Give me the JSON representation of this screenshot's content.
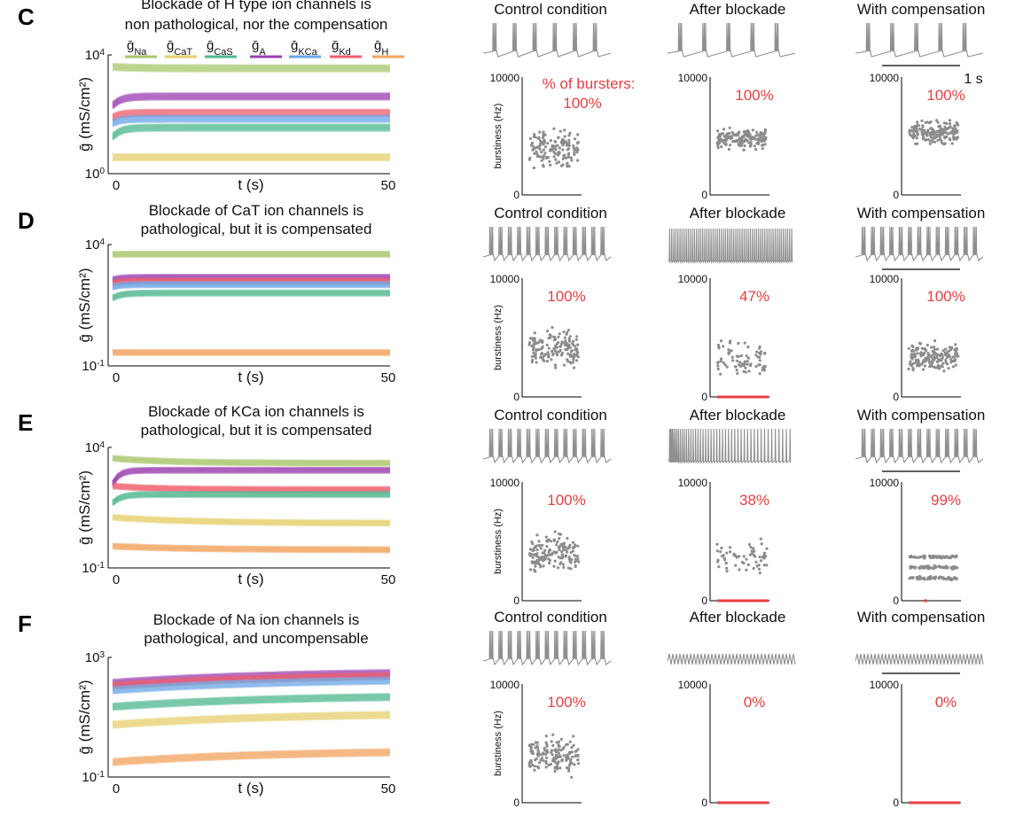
{
  "colors": {
    "Na": "#a8c66c",
    "CaT": "#e6cf6e",
    "CaS": "#4fb88e",
    "A": "#9a3fb1",
    "KCa": "#6aa6e6",
    "Kd": "#ef5d6b",
    "H": "#f3a25d",
    "scatter": "#8c8c8c",
    "red": "#e8403f",
    "trace": "#8f8f8f"
  },
  "legend": {
    "items": [
      {
        "key": "Na",
        "sub": "Na"
      },
      {
        "key": "CaT",
        "sub": "CaT"
      },
      {
        "key": "CaS",
        "sub": "CaS"
      },
      {
        "key": "A",
        "sub": "A"
      },
      {
        "key": "KCa",
        "sub": "KCa"
      },
      {
        "key": "Kd",
        "sub": "Kd"
      },
      {
        "key": "H",
        "sub": "H"
      }
    ]
  },
  "scale_bar": {
    "label": "1 s"
  },
  "chart_data": [
    {
      "panel": "C",
      "type": "line",
      "title": [
        "Blockade of H type ion channels is",
        "non pathological, nor the compensation"
      ],
      "xlabel": "t (s)",
      "ylabel": "ḡ (mS/cm²)",
      "xlim": [
        0,
        50
      ],
      "yscale": "log",
      "yticks": [
        {
          "base": "10",
          "exp": "4"
        },
        {
          "base": "10",
          "exp": "0"
        }
      ],
      "ylim_exp": [
        0,
        4
      ],
      "series": [
        {
          "key": "Na",
          "start": 3.6,
          "end": 3.55,
          "tau": 4
        },
        {
          "key": "A",
          "start": 2.3,
          "end": 2.6,
          "tau": 1.5
        },
        {
          "key": "Kd",
          "start": 1.9,
          "end": 2.05,
          "tau": 1.5
        },
        {
          "key": "KCa",
          "start": 1.7,
          "end": 1.85,
          "tau": 1.5
        },
        {
          "key": "CaS",
          "start": 1.25,
          "end": 1.55,
          "tau": 1.5
        },
        {
          "key": "CaT",
          "start": 0.55,
          "end": 0.55,
          "tau": 4
        }
      ],
      "conditions": [
        {
          "name": "Control condition",
          "trace": "burst6",
          "pct": "% of bursters:",
          "pct2": "100%",
          "burstiness": {
            "center": 3900,
            "spread": 1300,
            "n": 150,
            "zeros": false
          }
        },
        {
          "name": "After blockade",
          "trace": "burst5",
          "pct": "100%",
          "burstiness": {
            "center": 4800,
            "spread": 700,
            "n": 170,
            "zeros": false
          }
        },
        {
          "name": "With compensation",
          "trace": "burst5",
          "pct": "100%",
          "burstiness": {
            "center": 5300,
            "spread": 800,
            "n": 170,
            "zeros": false
          },
          "scale_bar": true
        }
      ],
      "burst_ylim": [
        0,
        10000
      ],
      "burst_ylabel": "burstiness (Hz)"
    },
    {
      "panel": "D",
      "type": "line",
      "title": [
        "Blockade of CaT ion channels is",
        "pathological, but it is compensated"
      ],
      "xlabel": "t (s)",
      "ylabel": "ḡ (mS/cm²)",
      "xlim": [
        0,
        50
      ],
      "yscale": "log",
      "yticks": [
        {
          "base": "10",
          "exp": "4"
        },
        {
          "base": "10",
          "exp": "-1"
        }
      ],
      "ylim_exp": [
        -1,
        4
      ],
      "series": [
        {
          "key": "Na",
          "start": 3.6,
          "end": 3.6,
          "tau": 4
        },
        {
          "key": "A",
          "start": 2.55,
          "end": 2.65,
          "tau": 1.5
        },
        {
          "key": "Kd",
          "start": 2.4,
          "end": 2.5,
          "tau": 1.5
        },
        {
          "key": "KCa",
          "start": 2.25,
          "end": 2.35,
          "tau": 1.5
        },
        {
          "key": "CaS",
          "start": 1.8,
          "end": 2.0,
          "tau": 1.5
        },
        {
          "key": "H",
          "start": -0.45,
          "end": -0.45,
          "tau": 4
        }
      ],
      "conditions": [
        {
          "name": "Control condition",
          "trace": "burst13",
          "pct": "100%",
          "burstiness": {
            "center": 4000,
            "spread": 1300,
            "n": 150,
            "zeros": false
          }
        },
        {
          "name": "After blockade",
          "trace": "spike60",
          "pct": "47%",
          "burstiness": {
            "center": 3000,
            "spread": 1400,
            "n": 75,
            "zeros": true
          }
        },
        {
          "name": "With compensation",
          "trace": "burst13",
          "pct": "100%",
          "burstiness": {
            "center": 3300,
            "spread": 1000,
            "n": 170,
            "zeros": false
          },
          "scale_bar": true
        }
      ],
      "burst_ylim": [
        0,
        10000
      ],
      "burst_ylabel": "burstiness (Hz)"
    },
    {
      "panel": "E",
      "type": "line",
      "title": [
        "Blockade of KCa ion channels is",
        "pathological, but it is compensated"
      ],
      "xlabel": "t (s)",
      "ylabel": "ḡ (mS/cm²)",
      "xlim": [
        0,
        50
      ],
      "yscale": "log",
      "yticks": [
        {
          "base": "10",
          "exp": "4"
        },
        {
          "base": "10",
          "exp": "-1"
        }
      ],
      "ylim_exp": [
        -1,
        4
      ],
      "series": [
        {
          "key": "Na",
          "start": 3.55,
          "end": 3.35,
          "tau": 10
        },
        {
          "key": "A",
          "start": 2.5,
          "end": 3.05,
          "tau": 1.2
        },
        {
          "key": "Kd",
          "start": 2.4,
          "end": 2.25,
          "tau": 8
        },
        {
          "key": "CaS",
          "start": 1.7,
          "end": 2.05,
          "tau": 1.5
        },
        {
          "key": "CaT",
          "start": 1.1,
          "end": 0.85,
          "tau": 15
        },
        {
          "key": "H",
          "start": -0.1,
          "end": -0.25,
          "tau": 15
        }
      ],
      "conditions": [
        {
          "name": "Control condition",
          "trace": "burst13",
          "pct": "100%",
          "burstiness": {
            "center": 4000,
            "spread": 1300,
            "n": 150,
            "zeros": false
          }
        },
        {
          "name": "After blockade",
          "trace": "mixed",
          "pct": "38%",
          "burstiness": {
            "center": 3800,
            "spread": 1400,
            "n": 60,
            "zeros": true
          }
        },
        {
          "name": "With compensation",
          "trace": "burst13",
          "pct": "99%",
          "burstiness": {
            "center": 2500,
            "spread": 500,
            "n": 170,
            "zeros": false,
            "band": true
          },
          "scale_bar": true
        }
      ],
      "burst_ylim": [
        0,
        10000
      ],
      "burst_ylabel": "burstiness (Hz)"
    },
    {
      "panel": "F",
      "type": "line",
      "title": [
        "Blockade of Na ion channels is",
        "pathological, and uncompensable"
      ],
      "xlabel": "t (s)",
      "ylabel": "ḡ (mS/cm²)",
      "xlim": [
        0,
        50
      ],
      "yscale": "log",
      "yticks": [
        {
          "base": "10",
          "exp": "3"
        },
        {
          "base": "10",
          "exp": "-1"
        }
      ],
      "ylim_exp": [
        -1,
        3
      ],
      "series": [
        {
          "key": "A",
          "start": 2.15,
          "end": 2.55,
          "tau": 30
        },
        {
          "key": "Kd",
          "start": 2.05,
          "end": 2.45,
          "tau": 30
        },
        {
          "key": "KCa",
          "start": 1.9,
          "end": 2.3,
          "tau": 30
        },
        {
          "key": "CaS",
          "start": 1.35,
          "end": 1.75,
          "tau": 30
        },
        {
          "key": "CaT",
          "start": 0.75,
          "end": 1.15,
          "tau": 30
        },
        {
          "key": "H",
          "start": -0.5,
          "end": -0.1,
          "tau": 30
        }
      ],
      "conditions": [
        {
          "name": "Control condition",
          "trace": "burst13",
          "pct": "100%",
          "burstiness": {
            "center": 4000,
            "spread": 1300,
            "n": 150,
            "zeros": false
          }
        },
        {
          "name": "After blockade",
          "trace": "osc",
          "pct": "0%",
          "burstiness": {
            "center": 0,
            "spread": 0,
            "n": 0,
            "zeros": true
          }
        },
        {
          "name": "With compensation",
          "trace": "osc",
          "pct": "0%",
          "burstiness": {
            "center": 0,
            "spread": 0,
            "n": 0,
            "zeros": true
          },
          "scale_bar": true
        }
      ],
      "burst_ylim": [
        0,
        10000
      ],
      "burst_ylabel": "burstiness (Hz)"
    }
  ]
}
